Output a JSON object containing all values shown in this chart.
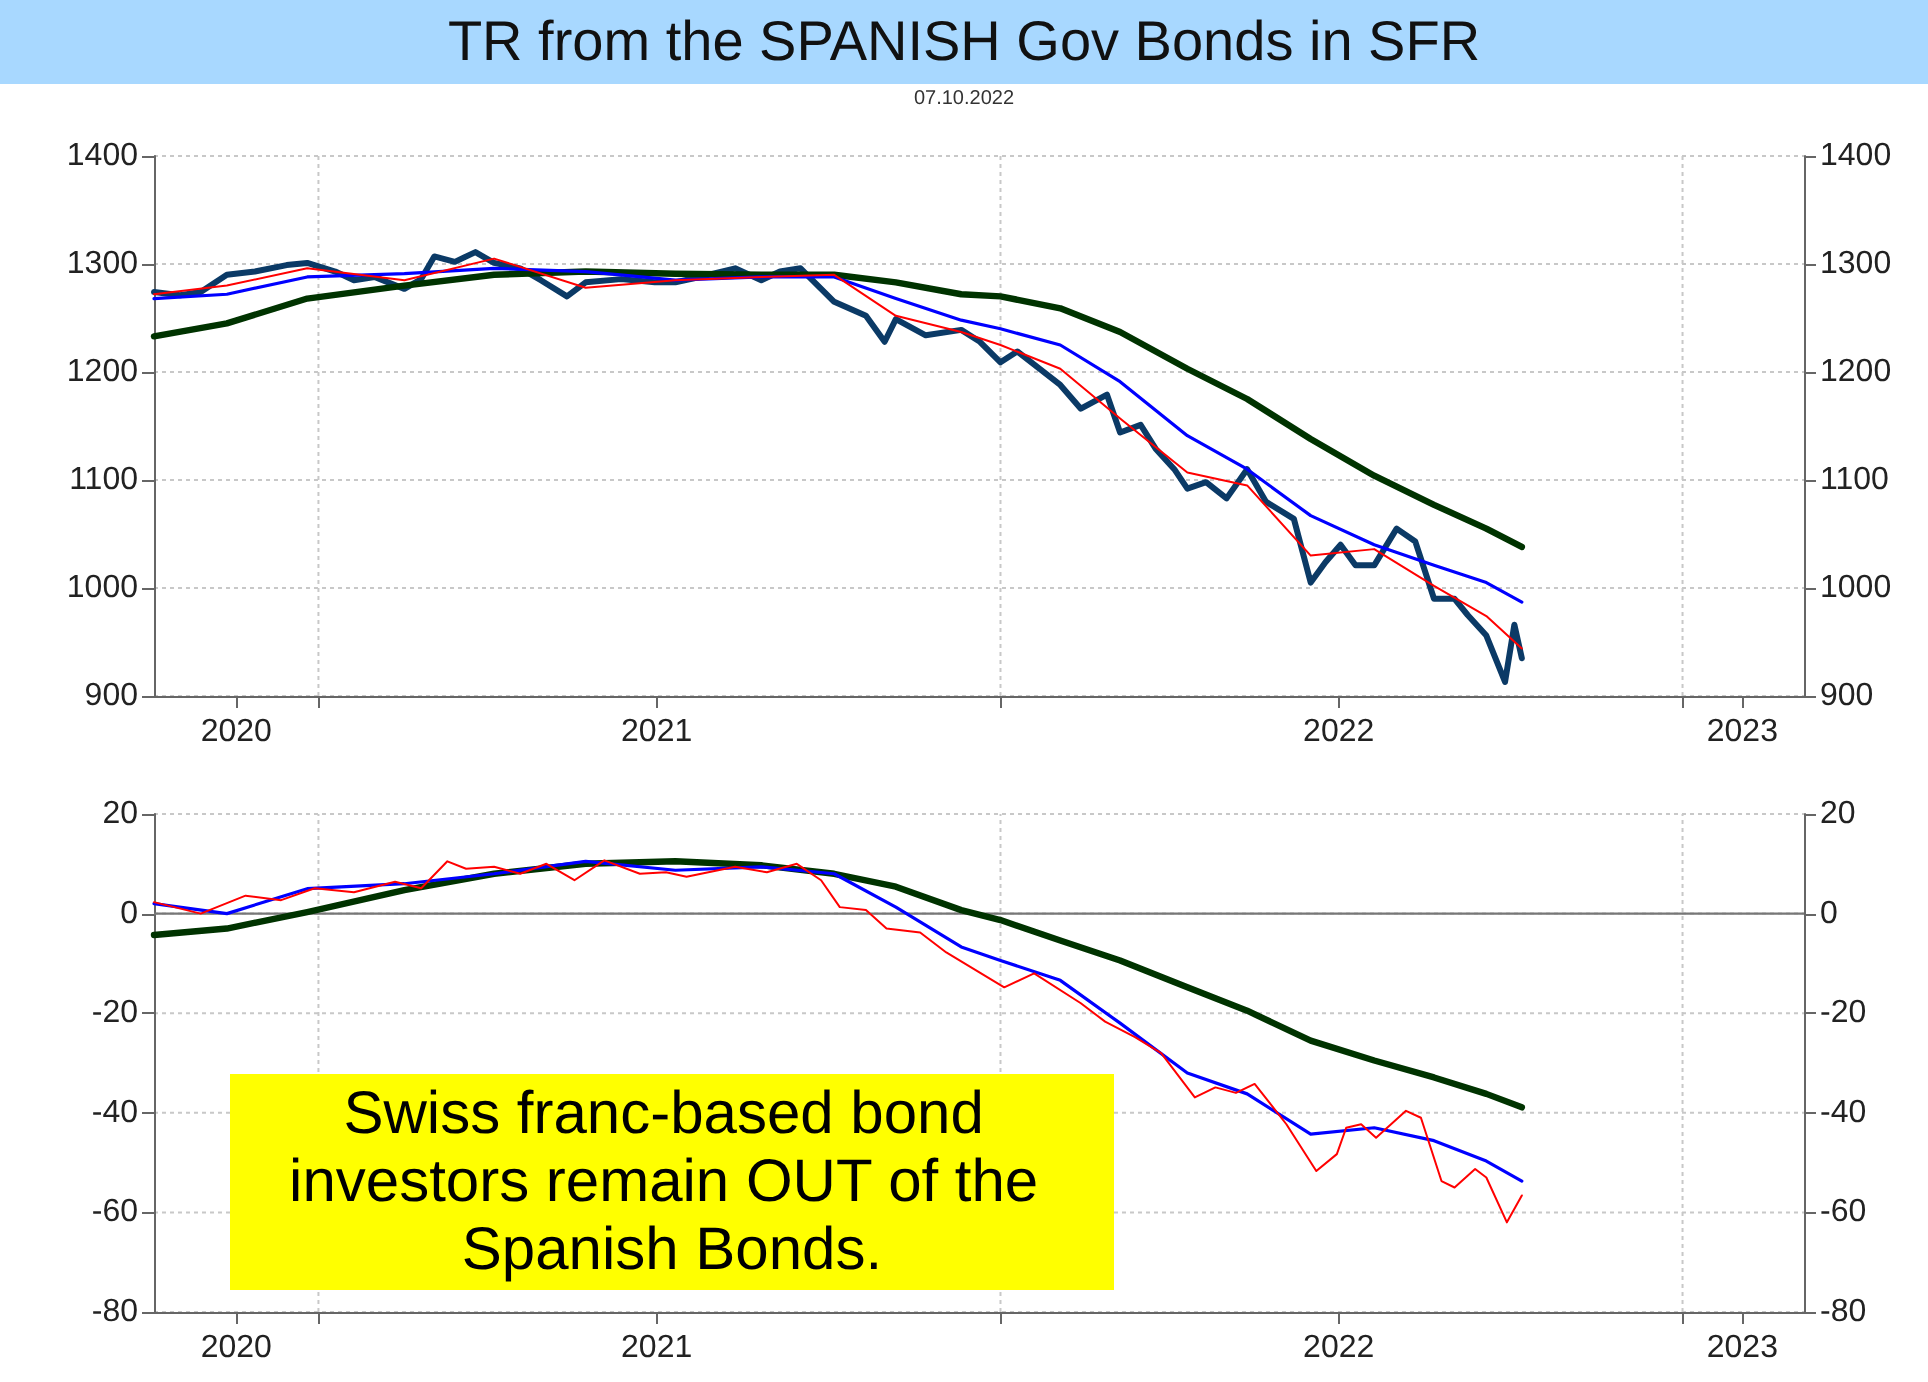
{
  "chart_data": [
    {
      "type": "line",
      "title": "TR from the SPANISH Gov Bonds in SFR",
      "subtitle": "07.10.2022",
      "xlim": [
        "2020-10-05",
        "2023-03-07"
      ],
      "xticks": [
        {
          "value": "2020-11-18",
          "label": "2020"
        },
        {
          "value": "2021-01-01",
          "label": null
        },
        {
          "value": "2021-07-01",
          "label": "2021"
        },
        {
          "value": "2022-01-01",
          "label": null
        },
        {
          "value": "2022-07-01",
          "label": "2022"
        },
        {
          "value": "2023-01-01",
          "label": null
        },
        {
          "value": "2023-02-02",
          "label": "2023"
        }
      ],
      "ylim": [
        900,
        1400
      ],
      "yticks": [
        900,
        1000,
        1100,
        1200,
        1300,
        1400
      ],
      "y2lim": [
        900,
        1400
      ],
      "y2ticks": [
        900,
        1000,
        1100,
        1200,
        1300,
        1400
      ],
      "grid": true,
      "series": [
        {
          "color": "#0b3a66",
          "x": [
            "2020-10-05",
            "2020-10-19",
            "2020-10-30",
            "2020-11-13",
            "2020-11-28",
            "2020-12-15",
            "2020-12-26",
            "2021-01-10",
            "2021-01-20",
            "2021-01-31",
            "2021-02-16",
            "2021-02-25",
            "2021-03-04",
            "2021-03-15",
            "2021-03-26",
            "2021-04-05",
            "2021-04-19",
            "2021-04-30",
            "2021-05-14",
            "2021-05-24",
            "2021-06-12",
            "2021-06-30",
            "2021-07-11",
            "2021-07-24",
            "2021-08-12",
            "2021-08-26",
            "2021-09-05",
            "2021-09-16",
            "2021-10-04",
            "2021-10-21",
            "2021-10-31",
            "2021-11-06",
            "2021-11-22",
            "2021-12-11",
            "2021-12-21",
            "2022-01-01",
            "2022-01-10",
            "2022-01-22",
            "2022-02-02",
            "2022-02-13",
            "2022-02-27",
            "2022-03-06",
            "2022-03-17",
            "2022-03-25",
            "2022-04-04",
            "2022-04-11",
            "2022-04-21",
            "2022-05-02",
            "2022-05-13",
            "2022-05-23",
            "2022-06-07",
            "2022-06-16",
            "2022-06-24",
            "2022-07-02",
            "2022-07-10",
            "2022-07-20",
            "2022-08-01",
            "2022-08-11",
            "2022-08-21",
            "2022-09-01",
            "2022-09-08",
            "2022-09-18",
            "2022-09-28",
            "2022-10-03",
            "2022-10-07"
          ],
          "values": [
            1274,
            1271,
            1274,
            1290,
            1293,
            1299,
            1301,
            1293,
            1285,
            1288,
            1277,
            1286,
            1307,
            1302,
            1311,
            1301,
            1296,
            1285,
            1270,
            1283,
            1286,
            1283,
            1283,
            1288,
            1296,
            1285,
            1293,
            1296,
            1265,
            1252,
            1228,
            1249,
            1234,
            1239,
            1228,
            1209,
            1219,
            1203,
            1188,
            1166,
            1179,
            1144,
            1151,
            1129,
            1110,
            1092,
            1098,
            1083,
            1110,
            1080,
            1064,
            1005,
            1024,
            1040,
            1021,
            1021,
            1055,
            1043,
            990,
            990,
            975,
            956,
            913,
            966,
            935
          ]
        },
        {
          "color": "#ff0000",
          "x": [
            "2020-10-05",
            "2020-11-13",
            "2020-12-26",
            "2021-02-16",
            "2021-04-05",
            "2021-05-24",
            "2021-07-11",
            "2021-08-26",
            "2021-10-04",
            "2021-11-06",
            "2021-12-11",
            "2022-01-01",
            "2022-02-02",
            "2022-03-06",
            "2022-04-11",
            "2022-05-13",
            "2022-06-16",
            "2022-07-20",
            "2022-08-21",
            "2022-09-18",
            "2022-10-07"
          ],
          "values": [
            1272,
            1280,
            1296,
            1285,
            1305,
            1278,
            1285,
            1288,
            1290,
            1252,
            1237,
            1225,
            1203,
            1157,
            1107,
            1095,
            1030,
            1036,
            1002,
            974,
            944
          ]
        },
        {
          "color": "#0000ff",
          "x": [
            "2020-10-05",
            "2020-11-13",
            "2020-12-26",
            "2021-02-16",
            "2021-04-05",
            "2021-05-24",
            "2021-07-11",
            "2021-08-26",
            "2021-10-04",
            "2021-11-06",
            "2021-12-11",
            "2022-01-01",
            "2022-02-02",
            "2022-03-06",
            "2022-04-11",
            "2022-05-13",
            "2022-06-16",
            "2022-07-20",
            "2022-08-21",
            "2022-09-18",
            "2022-10-07"
          ],
          "values": [
            1268,
            1272,
            1288,
            1291,
            1296,
            1293,
            1285,
            1288,
            1288,
            1268,
            1248,
            1240,
            1225,
            1191,
            1141,
            1110,
            1067,
            1040,
            1021,
            1005,
            987
          ]
        },
        {
          "color": "#003300",
          "x": [
            "2020-10-05",
            "2020-11-13",
            "2020-12-26",
            "2021-02-16",
            "2021-04-05",
            "2021-05-24",
            "2021-07-11",
            "2021-08-26",
            "2021-10-04",
            "2021-11-06",
            "2021-12-11",
            "2022-01-01",
            "2022-02-02",
            "2022-03-06",
            "2022-04-11",
            "2022-05-13",
            "2022-06-16",
            "2022-07-20",
            "2022-08-21",
            "2022-09-18",
            "2022-10-07"
          ],
          "values": [
            1233,
            1245,
            1268,
            1280,
            1290,
            1293,
            1291,
            1290,
            1290,
            1283,
            1272,
            1270,
            1259,
            1237,
            1203,
            1175,
            1138,
            1104,
            1077,
            1055,
            1038
          ]
        }
      ]
    },
    {
      "type": "line",
      "annotations": [
        "Swiss franc-based bond investors remain OUT of the Spanish Bonds."
      ],
      "xlim": [
        "2020-10-05",
        "2023-03-07"
      ],
      "xticks": [
        {
          "value": "2020-11-18",
          "label": "2020"
        },
        {
          "value": "2021-01-01",
          "label": null
        },
        {
          "value": "2021-07-01",
          "label": "2021"
        },
        {
          "value": "2022-01-01",
          "label": null
        },
        {
          "value": "2022-07-01",
          "label": "2022"
        },
        {
          "value": "2023-01-01",
          "label": null
        },
        {
          "value": "2023-02-02",
          "label": "2023"
        }
      ],
      "ylim": [
        -80,
        20
      ],
      "yticks": [
        -80,
        -60,
        -40,
        -20,
        0,
        20
      ],
      "y2lim": [
        -80,
        20
      ],
      "y2ticks": [
        -80,
        -60,
        -40,
        -20,
        0,
        20
      ],
      "grid": true,
      "ref_lines": [
        {
          "axis": "y",
          "value": 0,
          "color": "#777777"
        }
      ],
      "series": [
        {
          "color": "#ff0000",
          "x": [
            "2020-10-05",
            "2020-10-30",
            "2020-11-23",
            "2020-12-12",
            "2020-12-30",
            "2021-01-20",
            "2021-02-11",
            "2021-02-25",
            "2021-03-11",
            "2021-03-21",
            "2021-04-05",
            "2021-04-19",
            "2021-05-03",
            "2021-05-18",
            "2021-06-03",
            "2021-06-22",
            "2021-07-06",
            "2021-07-17",
            "2021-08-12",
            "2021-08-29",
            "2021-09-14",
            "2021-09-27",
            "2021-10-07",
            "2021-10-21",
            "2021-11-01",
            "2021-11-19",
            "2021-12-03",
            "2022-01-03",
            "2022-01-19",
            "2022-02-13",
            "2022-02-26",
            "2022-03-14",
            "2022-03-28",
            "2022-04-15",
            "2022-04-26",
            "2022-05-07",
            "2022-05-17",
            "2022-06-03",
            "2022-06-19",
            "2022-06-30",
            "2022-07-05",
            "2022-07-13",
            "2022-07-21",
            "2022-08-06",
            "2022-08-14",
            "2022-08-25",
            "2022-09-01",
            "2022-09-12",
            "2022-09-18",
            "2022-09-29",
            "2022-10-07"
          ],
          "values": [
            2.3,
            0,
            3.6,
            2.7,
            5.1,
            4.3,
            6.4,
            5.1,
            10.5,
            9,
            9.4,
            8,
            10,
            6.7,
            10.7,
            8,
            8.3,
            7.4,
            9.4,
            8.3,
            10,
            6.7,
            1.3,
            0.7,
            -3,
            -3.8,
            -7.8,
            -14.8,
            -12,
            -18,
            -21.7,
            -24.8,
            -28,
            -36.9,
            -34.9,
            -36,
            -34.2,
            -42.3,
            -51.7,
            -48.3,
            -43,
            -42.3,
            -45,
            -39.6,
            -41,
            -53.7,
            -55,
            -51.3,
            -53,
            -62,
            -56.6
          ]
        },
        {
          "color": "#0000ff",
          "x": [
            "2020-10-05",
            "2020-11-13",
            "2020-12-26",
            "2021-02-16",
            "2021-04-05",
            "2021-05-24",
            "2021-07-11",
            "2021-08-26",
            "2021-10-04",
            "2021-11-06",
            "2021-12-11",
            "2022-01-01",
            "2022-02-02",
            "2022-03-06",
            "2022-04-11",
            "2022-05-13",
            "2022-06-16",
            "2022-07-20",
            "2022-08-21",
            "2022-09-18",
            "2022-10-07"
          ],
          "values": [
            2,
            0,
            5,
            6,
            8,
            10.5,
            8.7,
            9.4,
            8,
            1.3,
            -6.7,
            -9.4,
            -13.4,
            -22,
            -32,
            -36.2,
            -44.3,
            -43,
            -45.6,
            -49.7,
            -53.7
          ]
        },
        {
          "color": "#003300",
          "x": [
            "2020-10-05",
            "2020-11-13",
            "2020-12-26",
            "2021-02-16",
            "2021-04-05",
            "2021-05-24",
            "2021-07-11",
            "2021-08-26",
            "2021-10-04",
            "2021-11-06",
            "2021-12-11",
            "2022-01-01",
            "2022-02-02",
            "2022-03-06",
            "2022-04-11",
            "2022-05-13",
            "2022-06-16",
            "2022-07-20",
            "2022-08-21",
            "2022-09-18",
            "2022-10-07"
          ],
          "values": [
            -4.3,
            -3,
            0.3,
            4.7,
            8,
            10,
            10.5,
            9.7,
            8,
            5.4,
            0.7,
            -1.3,
            -5.4,
            -9.4,
            -14.8,
            -19.5,
            -25.5,
            -29.5,
            -32.9,
            -36.2,
            -38.9
          ]
        }
      ]
    }
  ]
}
